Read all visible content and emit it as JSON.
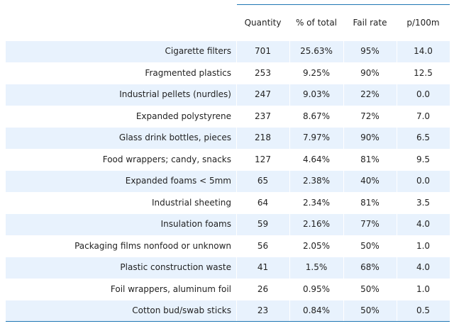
{
  "table": {
    "headers": [
      "Quantity",
      "% of total",
      "Fail rate",
      "p/100m"
    ],
    "rows": [
      {
        "label": "Cigarette filters",
        "quantity": "701",
        "percent": "25.63%",
        "fail_rate": "95%",
        "p100m": "14.0"
      },
      {
        "label": "Fragmented plastics",
        "quantity": "253",
        "percent": "9.25%",
        "fail_rate": "90%",
        "p100m": "12.5"
      },
      {
        "label": "Industrial pellets (nurdles)",
        "quantity": "247",
        "percent": "9.03%",
        "fail_rate": "22%",
        "p100m": "0.0"
      },
      {
        "label": "Expanded polystyrene",
        "quantity": "237",
        "percent": "8.67%",
        "fail_rate": "72%",
        "p100m": "7.0"
      },
      {
        "label": "Glass drink bottles, pieces",
        "quantity": "218",
        "percent": "7.97%",
        "fail_rate": "90%",
        "p100m": "6.5"
      },
      {
        "label": "Food wrappers; candy, snacks",
        "quantity": "127",
        "percent": "4.64%",
        "fail_rate": "81%",
        "p100m": "9.5"
      },
      {
        "label": "Expanded foams < 5mm",
        "quantity": "65",
        "percent": "2.38%",
        "fail_rate": "40%",
        "p100m": "0.0"
      },
      {
        "label": "Industrial sheeting",
        "quantity": "64",
        "percent": "2.34%",
        "fail_rate": "81%",
        "p100m": "3.5"
      },
      {
        "label": "Insulation foams",
        "quantity": "59",
        "percent": "2.16%",
        "fail_rate": "77%",
        "p100m": "4.0"
      },
      {
        "label": "Packaging films nonfood or unknown",
        "quantity": "56",
        "percent": "2.05%",
        "fail_rate": "50%",
        "p100m": "1.0"
      },
      {
        "label": "Plastic construction waste",
        "quantity": "41",
        "percent": "1.5%",
        "fail_rate": "68%",
        "p100m": "4.0"
      },
      {
        "label": "Foil wrappers, aluminum foil",
        "quantity": "26",
        "percent": "0.95%",
        "fail_rate": "50%",
        "p100m": "1.0"
      },
      {
        "label": "Cotton bud/swab sticks",
        "quantity": "23",
        "percent": "0.84%",
        "fail_rate": "50%",
        "p100m": "0.5"
      }
    ]
  },
  "colors": {
    "stripe": "#e8f2fd",
    "rule": "#1f77b4",
    "text": "#222222"
  }
}
